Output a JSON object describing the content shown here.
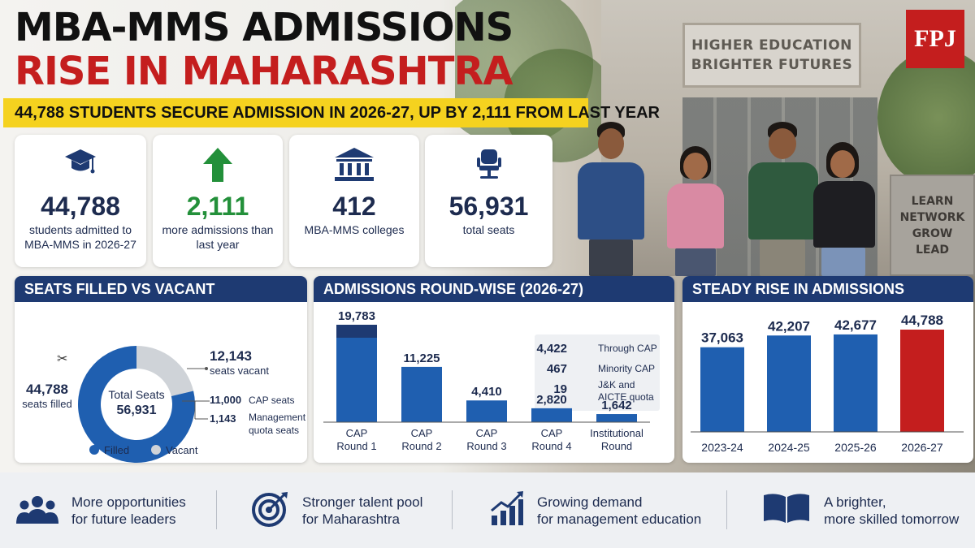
{
  "header": {
    "title_line1": "MBA-MMS ADMISSIONS",
    "title_line2": "RISE IN MAHARASHTRA",
    "subtitle": "44,788 STUDENTS SECURE ADMISSION IN 2026-27, UP BY 2,111 FROM LAST YEAR",
    "logo": "FPJ"
  },
  "background": {
    "sign_line1": "HIGHER EDUCATION",
    "sign_line2": "BRIGHTER FUTURES",
    "stone_words": [
      "LEARN",
      "NETWORK",
      "GROW",
      "LEAD"
    ]
  },
  "stats": [
    {
      "icon": "graduation-cap-icon",
      "value": "44,788",
      "label": "students admitted to MBA-MMS in 2026-27"
    },
    {
      "icon": "up-arrow-icon",
      "value": "2,111",
      "label": "more admissions than last year"
    },
    {
      "icon": "college-building-icon",
      "value": "412",
      "label": "MBA-MMS colleges"
    },
    {
      "icon": "chair-icon",
      "value": "56,931",
      "label": "total seats"
    }
  ],
  "colors": {
    "navy": "#1e3a72",
    "blue": "#1f5fb0",
    "red": "#c41e1e",
    "gray": "#cfd3d8",
    "green": "#23903a",
    "yellow": "#f5d21f"
  },
  "chart_data": [
    {
      "type": "pie",
      "title": "SEATS FILLED VS VACANT",
      "center_label": "Total Seats",
      "center_value": "56,931",
      "slices": [
        {
          "name": "Filled",
          "value": 44788,
          "value_label": "44,788",
          "label": "seats filled"
        },
        {
          "name": "Vacant",
          "value": 12143,
          "value_label": "12,143",
          "label": "seats vacant"
        }
      ],
      "breakdown": [
        {
          "value": "11,000",
          "label": "CAP seats"
        },
        {
          "value": "1,143",
          "label": "Management quota seats"
        }
      ],
      "legend": [
        "Filled",
        "Vacant"
      ]
    },
    {
      "type": "bar",
      "title": "ADMISSIONS ROUND-WISE (2026-27)",
      "categories": [
        "CAP Round 1",
        "CAP Round 2",
        "CAP Round 3",
        "CAP Round 4",
        "Institutional Round"
      ],
      "values": [
        19783,
        11225,
        4410,
        2820,
        1642
      ],
      "value_labels": [
        "19,783",
        "11,225",
        "4,410",
        "2,820",
        "1,642"
      ],
      "breakdown": [
        {
          "value": "4,422",
          "label": "Through CAP",
          "value_num": 4422
        },
        {
          "value": "467",
          "label": "Minority CAP",
          "value_num": 467
        },
        {
          "value": "19",
          "label": "J&K and AICTE quota",
          "value_num": 19
        }
      ]
    },
    {
      "type": "bar",
      "title": "STEADY RISE IN ADMISSIONS",
      "categories": [
        "2023-24",
        "2024-25",
        "2025-26",
        "2026-27"
      ],
      "values": [
        37063,
        42207,
        42677,
        44788
      ],
      "value_labels": [
        "37,063",
        "42,207",
        "42,677",
        "44,788"
      ],
      "highlight": "2026-27"
    }
  ],
  "bottom": [
    {
      "icon": "people-group-icon",
      "line1": "More opportunities",
      "line2": "for future leaders"
    },
    {
      "icon": "target-icon",
      "line1": "Stronger talent pool",
      "line2": "for Maharashtra"
    },
    {
      "icon": "growth-chart-icon",
      "line1": "Growing demand",
      "line2": "for management education"
    },
    {
      "icon": "open-book-icon",
      "line1": "A brighter,",
      "line2": "more skilled tomorrow"
    }
  ]
}
